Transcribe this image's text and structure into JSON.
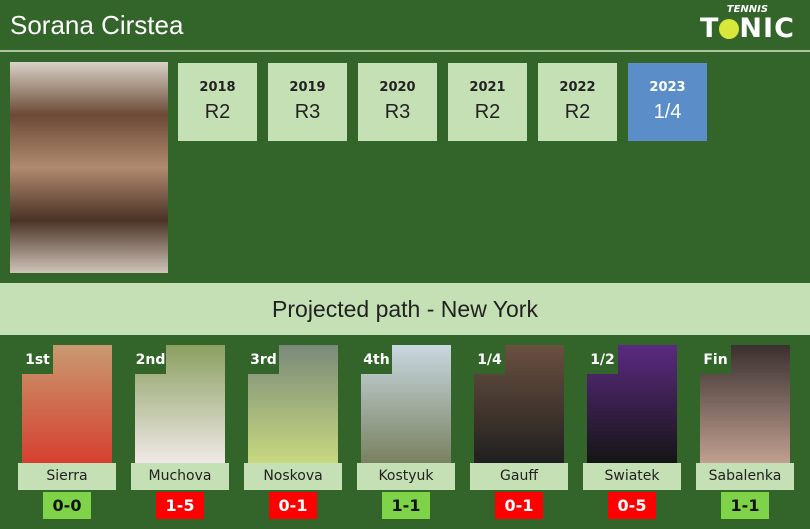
{
  "header": {
    "title": "Sorana Cirstea",
    "logo_top": "TENNIS",
    "logo_main_a": "T",
    "logo_main_b": "NIC"
  },
  "years": [
    {
      "year": "2018",
      "result": "R2",
      "current": false
    },
    {
      "year": "2019",
      "result": "R3",
      "current": false
    },
    {
      "year": "2020",
      "result": "R3",
      "current": false
    },
    {
      "year": "2021",
      "result": "R2",
      "current": false
    },
    {
      "year": "2022",
      "result": "R2",
      "current": false
    },
    {
      "year": "2023",
      "result": "1/4",
      "current": true
    }
  ],
  "banner": "Projected path - New York",
  "colors": {
    "win": "#7ed348",
    "loss": "#ff0000",
    "bg": "#33642a",
    "panel": "#c5e0b4",
    "current": "#5b8ec8"
  },
  "path": [
    {
      "round": "1st",
      "name": "Sierra",
      "h2h": "0-0",
      "status": "win"
    },
    {
      "round": "2nd",
      "name": "Muchova",
      "h2h": "1-5",
      "status": "loss"
    },
    {
      "round": "3rd",
      "name": "Noskova",
      "h2h": "0-1",
      "status": "loss"
    },
    {
      "round": "4th",
      "name": "Kostyuk",
      "h2h": "1-1",
      "status": "win"
    },
    {
      "round": "1/4",
      "name": "Gauff",
      "h2h": "0-1",
      "status": "loss"
    },
    {
      "round": "1/2",
      "name": "Swiatek",
      "h2h": "0-5",
      "status": "loss"
    },
    {
      "round": "Fin",
      "name": "Sabalenka",
      "h2h": "1-1",
      "status": "win"
    }
  ]
}
